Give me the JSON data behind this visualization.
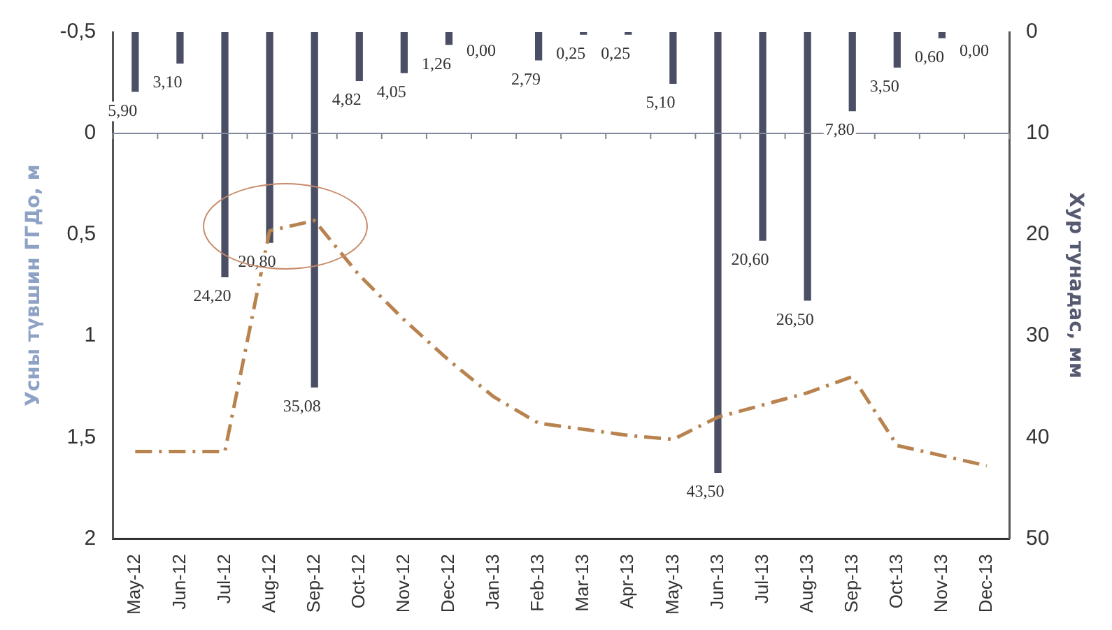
{
  "chart_data": {
    "type": "bar",
    "ylabel": "Усны түвшин ГГДо, м",
    "y2label": "Хур тунадас, мм",
    "categories": [
      "May-12",
      "Jun-12",
      "Jul-12",
      "Aug-12",
      "Sep-12",
      "Oct-12",
      "Nov-12",
      "Dec-12",
      "Jan-13",
      "Feb-13",
      "Mar-13",
      "Apr-13",
      "May-13",
      "Jun-13",
      "Jul-13",
      "Aug-13",
      "Sep-13",
      "Oct-13",
      "Nov-13",
      "Dec-13"
    ],
    "series": [
      {
        "axis": "y2",
        "color": "#4b4f66",
        "values": [
          5.9,
          3.1,
          24.2,
          20.8,
          35.08,
          4.82,
          4.05,
          1.26,
          0,
          2.79,
          0.25,
          0.25,
          5.1,
          43.5,
          20.6,
          26.5,
          7.8,
          3.5,
          0.6,
          0
        ],
        "value_labels": [
          "5,90",
          "3,10",
          "24,20",
          "20,80",
          "35,08",
          "4,82",
          "4,05",
          "1,26",
          "0,00",
          "2,79",
          "0,25",
          "0,25",
          "5,10",
          "43,50",
          "20,60",
          "26,50",
          "7,80",
          "3,50",
          "0,60",
          "0,00"
        ]
      },
      {
        "type": "line",
        "axis": "y",
        "color": "#b8834f",
        "line_style": "dashed",
        "marker": "none",
        "values": [
          1.57,
          1.57,
          1.57,
          0.48,
          0.43,
          0.7,
          0.92,
          1.12,
          1.3,
          1.43,
          1.46,
          1.49,
          1.51,
          1.4,
          1.34,
          1.28,
          1.2,
          1.54,
          1.59,
          1.64
        ]
      }
    ],
    "ylim": [
      2,
      -0.5
    ],
    "yticks": [
      {
        "value": -0.5,
        "label": "-0,5"
      },
      0,
      {
        "value": 0.5,
        "label": "0,5"
      },
      1,
      {
        "value": 1.5,
        "label": "1,5"
      },
      2
    ],
    "y2lim": [
      50,
      0
    ],
    "y2ticks": [
      0,
      10,
      20,
      30,
      40,
      50
    ],
    "ref_lines": [
      {
        "axis": "y",
        "value": 0,
        "color": "#7f8a9a"
      }
    ],
    "grid": false,
    "legend": false
  }
}
